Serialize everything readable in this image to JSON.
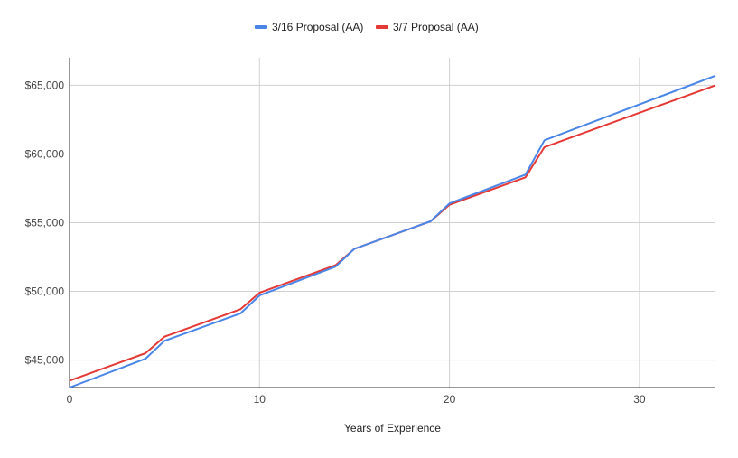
{
  "chart_data": {
    "type": "line",
    "title": "",
    "xlabel": "Years of Experience",
    "ylabel": "",
    "xlim": [
      0,
      34
    ],
    "ylim": [
      43000,
      67000
    ],
    "x_ticks": [
      0,
      10,
      20,
      30
    ],
    "x_tick_labels": [
      "0",
      "10",
      "20",
      "30"
    ],
    "y_ticks": [
      45000,
      50000,
      55000,
      60000,
      65000
    ],
    "y_tick_labels": [
      "$45,000",
      "$50,000",
      "$55,000",
      "$60,000",
      "$65,000"
    ],
    "grid": true,
    "legend_position": "top",
    "series": [
      {
        "name": "3/16 Proposal (AA)",
        "color": "#4a86e8",
        "x": [
          0,
          4,
          5,
          9,
          10,
          14,
          15,
          19,
          20,
          24,
          25,
          34
        ],
        "y": [
          43000,
          45100,
          46400,
          48400,
          49700,
          51800,
          53100,
          55100,
          56400,
          58500,
          61000,
          65700
        ]
      },
      {
        "name": "3/7 Proposal (AA)",
        "color": "#e53935",
        "x": [
          0,
          4,
          5,
          9,
          10,
          14,
          15,
          19,
          20,
          24,
          25,
          34
        ],
        "y": [
          43500,
          45500,
          46700,
          48700,
          49900,
          51900,
          53100,
          55100,
          56300,
          58300,
          60500,
          65000
        ]
      }
    ]
  }
}
